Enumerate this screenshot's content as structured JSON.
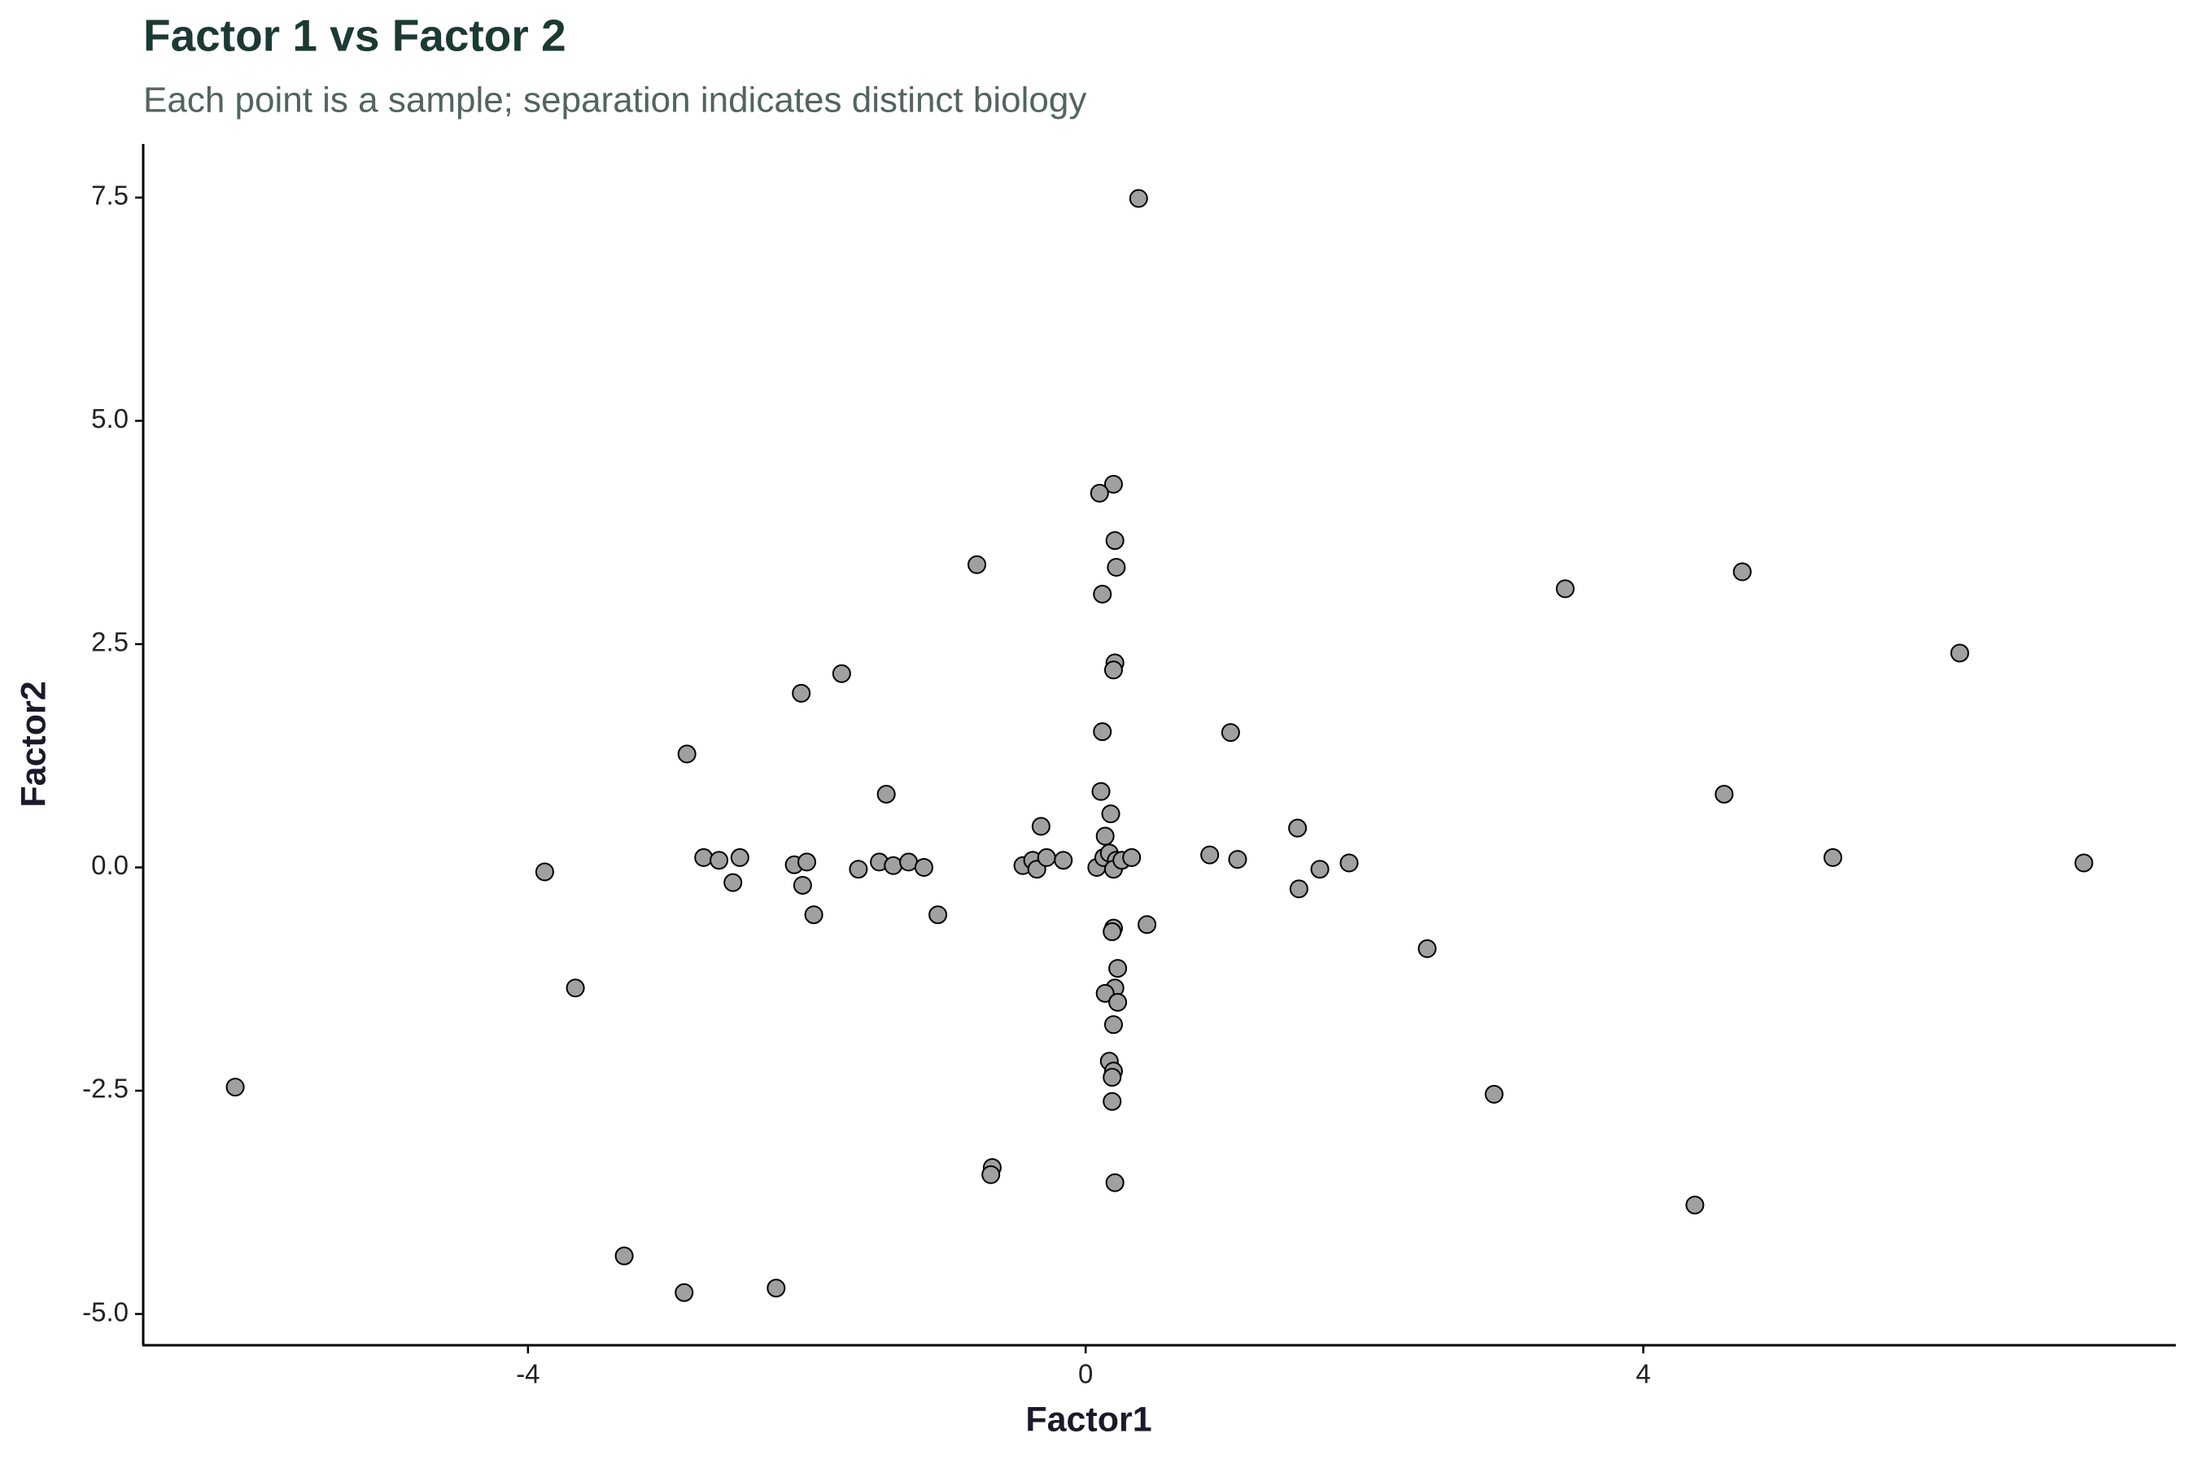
{
  "chart_data": {
    "type": "scatter",
    "title": "Factor 1 vs Factor 2",
    "subtitle": "Each point is a sample; separation indicates distinct biology",
    "x_label": "Factor1",
    "y_label": "Factor2",
    "xlim": [
      -6.76,
      7.82
    ],
    "ylim": [
      -5.35,
      8.1
    ],
    "xticks": [
      -4,
      0,
      4
    ],
    "yticks": [
      {
        "value": -5,
        "label": "-5.0"
      },
      -2.5,
      {
        "value": 0,
        "label": "0.0"
      },
      2.5,
      {
        "value": 5,
        "label": "5.0"
      },
      7.5
    ],
    "color": "#a0a0a0",
    "edge_color": "#000000",
    "series": [
      {
        "x": [
          0.38,
          0.2,
          0.1,
          0.21,
          0.22,
          0.12,
          -0.78,
          3.44,
          4.71,
          6.27,
          0.21,
          0.2,
          -1.75,
          -2.04,
          0.12,
          1.04,
          -2.86,
          0.11,
          -1.43,
          4.58,
          0.18,
          -0.32,
          1.52,
          0.14,
          -3.88,
          -2.74,
          -2.63,
          -2.48,
          -2.53,
          -2.09,
          -2.0,
          -2.03,
          -1.95,
          -1.63,
          -1.48,
          -1.38,
          -1.27,
          -1.16,
          -1.06,
          -0.45,
          -0.38,
          -0.35,
          -0.28,
          -0.16,
          0.08,
          0.13,
          0.17,
          0.22,
          0.2,
          0.26,
          0.33,
          0.89,
          1.09,
          1.53,
          1.68,
          1.89,
          5.36,
          7.16,
          0.2,
          0.19,
          0.44,
          2.45,
          0.23,
          -3.66,
          0.21,
          0.14,
          0.23,
          0.2,
          0.17,
          0.2,
          0.19,
          -6.1,
          2.93,
          0.19,
          -0.67,
          -0.68,
          0.21,
          4.37,
          -3.31,
          -2.88,
          -2.22
        ],
        "values": [
          7.49,
          4.29,
          4.19,
          3.66,
          3.36,
          3.06,
          3.39,
          3.12,
          3.31,
          2.4,
          2.29,
          2.21,
          2.17,
          1.95,
          1.52,
          1.51,
          1.27,
          0.85,
          0.82,
          0.82,
          0.6,
          0.46,
          0.44,
          0.35,
          -0.05,
          0.11,
          0.08,
          0.11,
          -0.17,
          0.03,
          0.06,
          -0.2,
          -0.53,
          -0.02,
          0.06,
          0.02,
          0.06,
          0.0,
          -0.53,
          0.02,
          0.08,
          -0.02,
          0.11,
          0.08,
          0.0,
          0.11,
          0.16,
          0.08,
          -0.02,
          0.08,
          0.11,
          0.14,
          0.09,
          -0.24,
          -0.02,
          0.05,
          0.11,
          0.05,
          -0.68,
          -0.72,
          -0.64,
          -0.91,
          -1.13,
          -1.35,
          -1.35,
          -1.41,
          -1.51,
          -1.76,
          -2.17,
          -2.28,
          -2.35,
          -2.46,
          -2.54,
          -2.62,
          -3.36,
          -3.44,
          -3.53,
          -3.78,
          -4.35,
          -4.76,
          -4.71
        ]
      }
    ]
  }
}
